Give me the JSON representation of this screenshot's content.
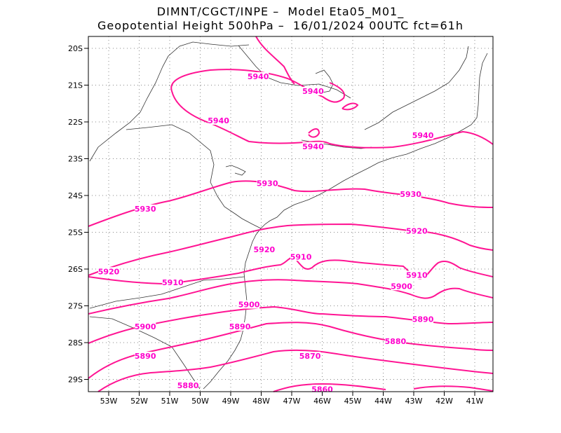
{
  "title_line1": "DIMNT/CGCT/INPE –  Model Eta05_M01_",
  "title_line2": "Geopotential Height 500hPa –  16/01/2024 00UTC fct=61h",
  "x_ticks": [
    "53W",
    "52W",
    "51W",
    "50W",
    "49W",
    "48W",
    "47W",
    "46W",
    "45W",
    "44W",
    "43W",
    "42W",
    "41W"
  ],
  "y_ticks": [
    "20S",
    "21S",
    "22S",
    "23S",
    "24S",
    "25S",
    "26S",
    "27S",
    "28S",
    "29S"
  ],
  "contour_labels": [
    {
      "text": "5940",
      "lon": -48.1,
      "lat": -20.8
    },
    {
      "text": "5940",
      "lon": -46.3,
      "lat": -21.2
    },
    {
      "text": "5940",
      "lon": -49.4,
      "lat": -22.0
    },
    {
      "text": "5940",
      "lon": -46.3,
      "lat": -22.7
    },
    {
      "text": "5940",
      "lon": -42.7,
      "lat": -22.4
    },
    {
      "text": "5930",
      "lon": -47.8,
      "lat": -23.7
    },
    {
      "text": "5930",
      "lon": -43.1,
      "lat": -24.0
    },
    {
      "text": "5930",
      "lon": -51.8,
      "lat": -24.4
    },
    {
      "text": "5920",
      "lon": -42.9,
      "lat": -25.0
    },
    {
      "text": "5920",
      "lon": -47.9,
      "lat": -25.5
    },
    {
      "text": "5920",
      "lon": -53.0,
      "lat": -26.1
    },
    {
      "text": "5910",
      "lon": -46.7,
      "lat": -25.7
    },
    {
      "text": "5910",
      "lon": -42.9,
      "lat": -26.2
    },
    {
      "text": "5910",
      "lon": -50.9,
      "lat": -26.4
    },
    {
      "text": "5900",
      "lon": -43.4,
      "lat": -26.5
    },
    {
      "text": "5900",
      "lon": -48.4,
      "lat": -27.0
    },
    {
      "text": "5900",
      "lon": -51.8,
      "lat": -27.6
    },
    {
      "text": "5890",
      "lon": -42.7,
      "lat": -27.4
    },
    {
      "text": "5890",
      "lon": -48.7,
      "lat": -27.6
    },
    {
      "text": "5880",
      "lon": -43.6,
      "lat": -28.0
    },
    {
      "text": "5890",
      "lon": -51.8,
      "lat": -28.4
    },
    {
      "text": "5870",
      "lon": -46.4,
      "lat": -28.4
    },
    {
      "text": "5880",
      "lon": -50.4,
      "lat": -29.2
    },
    {
      "text": "5860",
      "lon": -46.0,
      "lat": -29.3
    }
  ],
  "colors": {
    "contour": "#ff1493",
    "coast": "#333333",
    "grid": "#888888"
  }
}
